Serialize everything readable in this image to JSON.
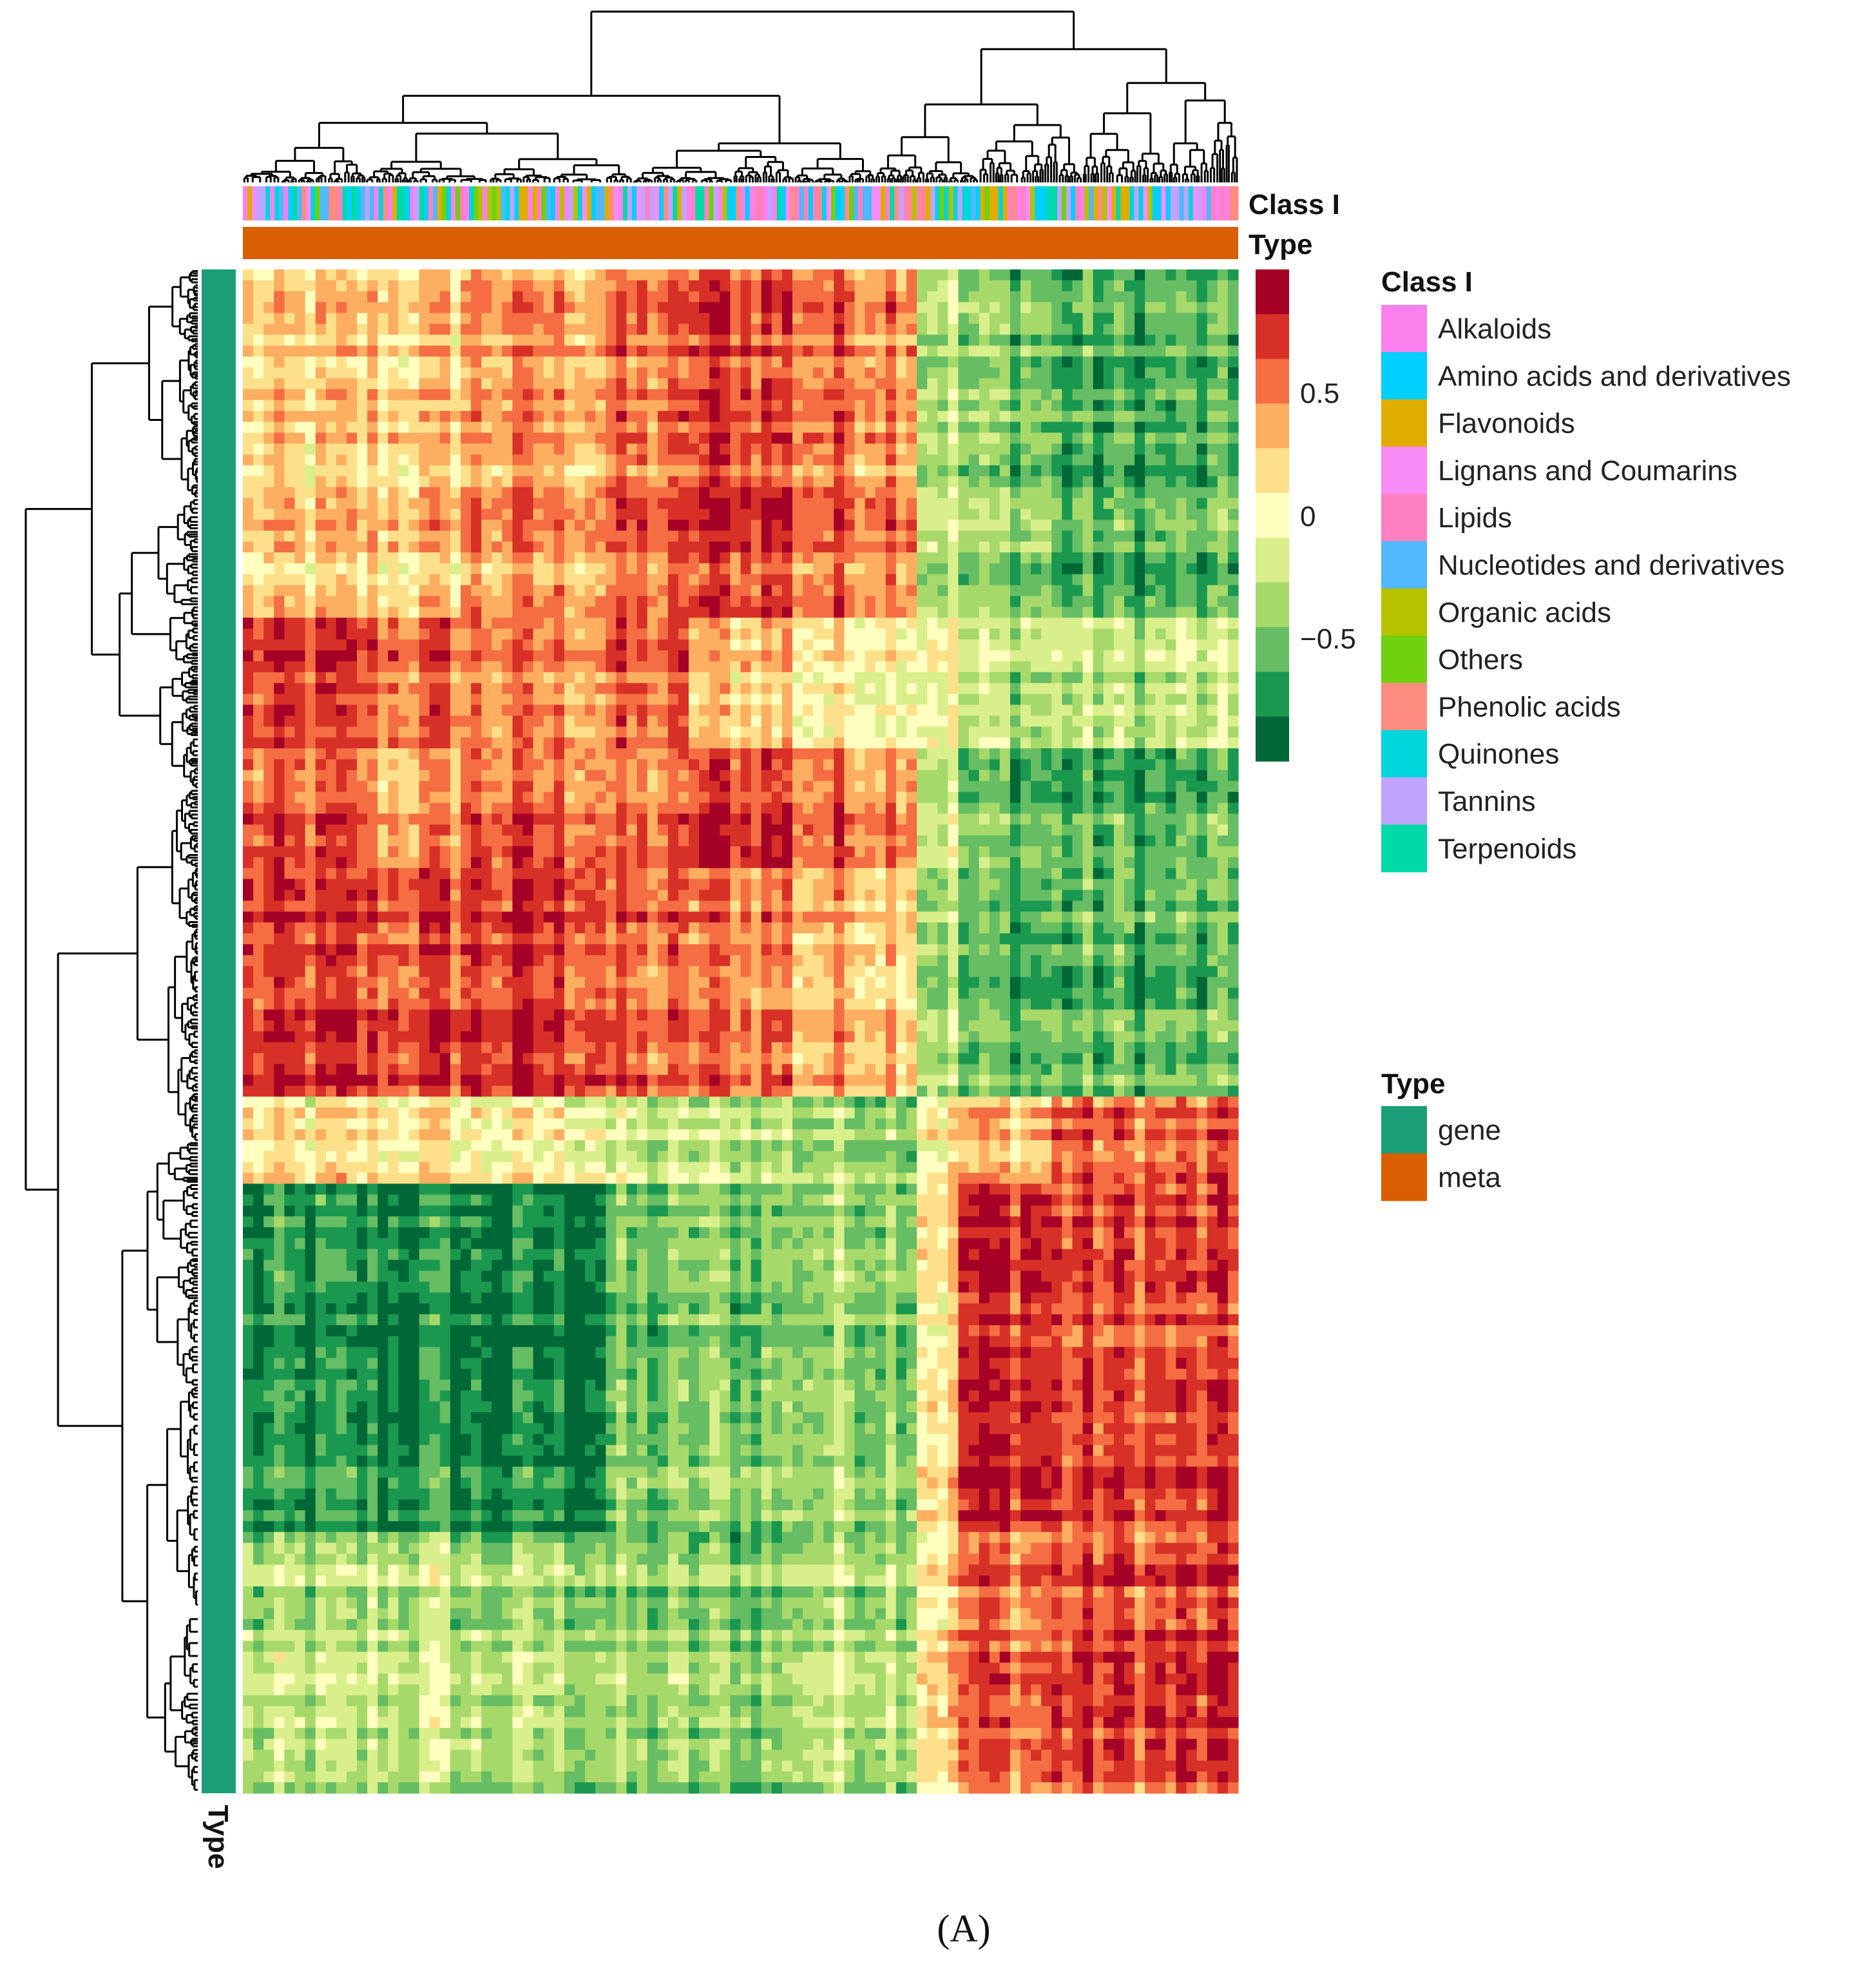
{
  "chart_data": {
    "type": "heatmap",
    "title": "",
    "clustered": true,
    "row_annotation": {
      "title": "Type",
      "value": "gene"
    },
    "column_annotations": [
      {
        "title": "Class I"
      },
      {
        "title": "Type",
        "value": "meta"
      }
    ],
    "color_scale": {
      "ticks": [
        {
          "value": 0.5,
          "label": "0.5"
        },
        {
          "value": 0,
          "label": "0"
        },
        {
          "value": -0.5,
          "label": "−0.5"
        }
      ],
      "range": [
        -1,
        1
      ],
      "colors": [
        "#a50026",
        "#d73027",
        "#f46d43",
        "#fdae61",
        "#fee08b",
        "#ffffbf",
        "#d9ef8b",
        "#a6d96a",
        "#66bd63",
        "#1a9850",
        "#006837"
      ]
    },
    "approximate_block_means": {
      "note_rows": "row clusters top to bottom",
      "values": [
        [
          0.2,
          0.25,
          0.45,
          0.55,
          0.75,
          0.6,
          -0.3,
          -0.5,
          -0.7
        ],
        [
          0.7,
          0.6,
          0.5,
          0.6,
          0.3,
          0.1,
          0.0,
          -0.3,
          -0.3
        ],
        [
          0.6,
          0.4,
          0.6,
          0.5,
          0.8,
          0.6,
          -0.2,
          -0.6,
          -0.7
        ],
        [
          0.75,
          0.75,
          0.8,
          0.6,
          0.6,
          0.4,
          -0.3,
          -0.6,
          -0.6
        ],
        [
          0.1,
          0.1,
          0.0,
          -0.3,
          -0.3,
          -0.4,
          0.1,
          0.3,
          0.6
        ],
        [
          -0.85,
          -0.85,
          -0.9,
          -0.6,
          -0.5,
          -0.4,
          0.2,
          0.85,
          0.7
        ],
        [
          -0.4,
          -0.3,
          -0.4,
          -0.5,
          -0.5,
          -0.3,
          0.2,
          0.6,
          0.7
        ]
      ]
    }
  },
  "legend_class": {
    "title": "Class I",
    "items": [
      {
        "label": "Alkaloids",
        "color": "#fb80ee"
      },
      {
        "label": "Amino acids and derivatives",
        "color": "#00cfff"
      },
      {
        "label": "Flavonoids",
        "color": "#e0ac00"
      },
      {
        "label": "Lignans and Coumarins",
        "color": "#f88cf7"
      },
      {
        "label": "Lipids",
        "color": "#ff80c0"
      },
      {
        "label": "Nucleotides and derivatives",
        "color": "#4fb8ff"
      },
      {
        "label": "Organic acids",
        "color": "#b5c200"
      },
      {
        "label": "Others",
        "color": "#6fd10f"
      },
      {
        "label": "Phenolic acids",
        "color": "#ff8c80"
      },
      {
        "label": "Quinones",
        "color": "#00d5dc"
      },
      {
        "label": "Tannins",
        "color": "#bfa3ff"
      },
      {
        "label": "Terpenoids",
        "color": "#00d9a8"
      }
    ]
  },
  "legend_type": {
    "title": "Type",
    "items": [
      {
        "label": "gene",
        "color": "#1b9e77"
      },
      {
        "label": "meta",
        "color": "#d95f02"
      }
    ]
  },
  "annotation_labels": {
    "class": "Class I",
    "type_col": "Type",
    "type_row": "Type"
  },
  "caption": "(A)"
}
